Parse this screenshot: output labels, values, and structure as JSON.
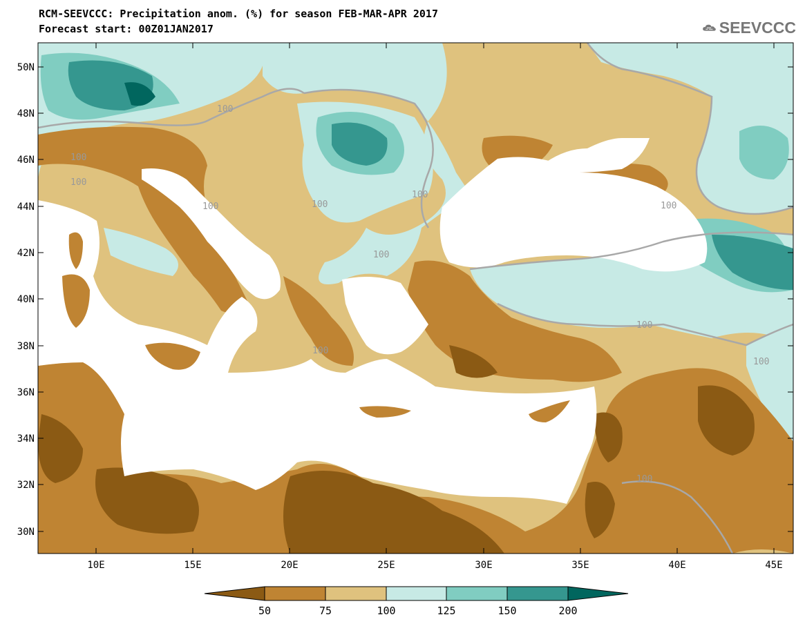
{
  "header": {
    "title_line1": "RCM-SEEVCCC: Precipitation anom. (%) for season FEB-MAR-APR 2017",
    "title_line2": "Forecast start: 00Z01JAN2017"
  },
  "logo": {
    "text": "SEEVCCC",
    "icon": "cloud-icon",
    "color": "#777777"
  },
  "map": {
    "lon_range": [
      7,
      46
    ],
    "lat_range": [
      29,
      51
    ],
    "x_ticks": [
      "10E",
      "15E",
      "20E",
      "25E",
      "30E",
      "35E",
      "40E",
      "45E"
    ],
    "y_ticks": [
      "50N",
      "48N",
      "46N",
      "44N",
      "42N",
      "40N",
      "38N",
      "36N",
      "34N",
      "32N",
      "30N"
    ],
    "contour_labels": [
      "100",
      "100",
      "100",
      "100",
      "100",
      "100",
      "100",
      "100",
      "100",
      "100",
      "100",
      "100"
    ],
    "colors": {
      "below_50": "#8b5a14",
      "50_75": "#bf8433",
      "75_100": "#dfc27e",
      "100_125": "#c7eae5",
      "125_150": "#80cdc1",
      "150_200": "#35978f",
      "above_200": "#01665e",
      "sea": "#ffffff",
      "contour_100": "#a8a8a8"
    }
  },
  "colorbar": {
    "labels": [
      "50",
      "75",
      "100",
      "125",
      "150",
      "200"
    ],
    "colors": [
      "#8b5a14",
      "#bf8433",
      "#dfc27e",
      "#c7eae5",
      "#80cdc1",
      "#35978f",
      "#01665e"
    ]
  }
}
